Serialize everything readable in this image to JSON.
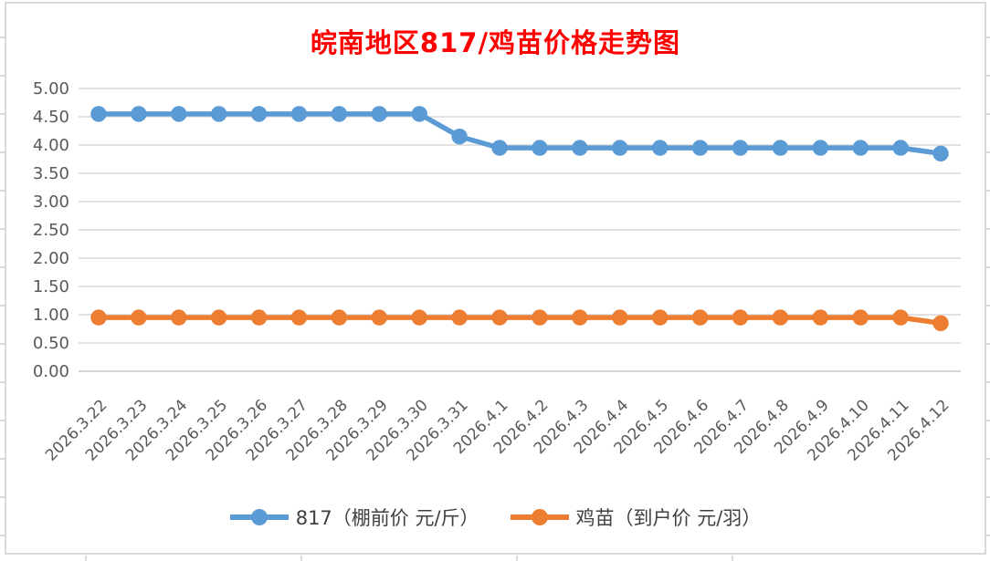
{
  "title": "皖南地区817/鸡苗价格走势图",
  "title_color": "#FF0000",
  "chart_data": {
    "type": "line",
    "title": "皖南地区817/鸡苗价格走势图",
    "categories": [
      "2026.3.22",
      "2026.3.23",
      "2026.3.24",
      "2026.3.25",
      "2026.3.26",
      "2026.3.27",
      "2026.3.28",
      "2026.3.29",
      "2026.3.30",
      "2026.3.31",
      "2026.4.1",
      "2026.4.2",
      "2026.4.3",
      "2026.4.4",
      "2026.4.5",
      "2026.4.6",
      "2026.4.7",
      "2026.4.8",
      "2026.4.9",
      "2026.4.10",
      "2026.4.11",
      "2026.4.12"
    ],
    "series": [
      {
        "name": "817（棚前价 元/斤）",
        "color": "#5B9BD5",
        "values": [
          4.55,
          4.55,
          4.55,
          4.55,
          4.55,
          4.55,
          4.55,
          4.55,
          4.55,
          4.15,
          3.95,
          3.95,
          3.95,
          3.95,
          3.95,
          3.95,
          3.95,
          3.95,
          3.95,
          3.95,
          3.95,
          3.85
        ]
      },
      {
        "name": "鸡苗（到户价 元/羽）",
        "color": "#ED7D31",
        "values": [
          0.95,
          0.95,
          0.95,
          0.95,
          0.95,
          0.95,
          0.95,
          0.95,
          0.95,
          0.95,
          0.95,
          0.95,
          0.95,
          0.95,
          0.95,
          0.95,
          0.95,
          0.95,
          0.95,
          0.95,
          0.95,
          0.85
        ]
      }
    ],
    "ylim": [
      0.0,
      5.0
    ],
    "ytick_step": 0.5,
    "y_ticks": [
      "0.00",
      "0.50",
      "1.00",
      "1.50",
      "2.00",
      "2.50",
      "3.00",
      "3.50",
      "4.00",
      "4.50",
      "5.00"
    ],
    "xlabel": "",
    "ylabel": "",
    "xlabel_rotation": 45,
    "grid": true,
    "legend_position": "bottom",
    "colors": {
      "gridline": "#D9D9D9",
      "axis_text": "#595959",
      "legend_text": "#404040"
    }
  }
}
